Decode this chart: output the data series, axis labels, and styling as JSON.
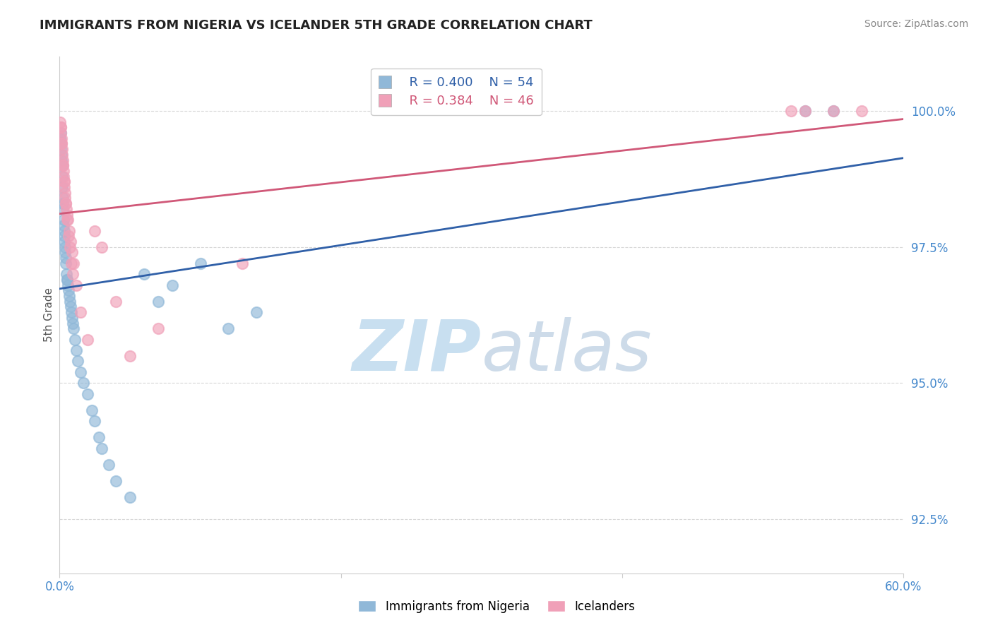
{
  "title": "IMMIGRANTS FROM NIGERIA VS ICELANDER 5TH GRADE CORRELATION CHART",
  "source_text": "Source: ZipAtlas.com",
  "ylabel": "5th Grade",
  "xlim": [
    0.0,
    60.0
  ],
  "ylim": [
    91.5,
    101.0
  ],
  "x_tick_vals": [
    0.0,
    20.0,
    40.0,
    60.0
  ],
  "x_tick_labels": [
    "0.0%",
    "",
    "",
    "60.0%"
  ],
  "y_tick_vals": [
    92.5,
    95.0,
    97.5,
    100.0
  ],
  "y_tick_labels": [
    "92.5%",
    "95.0%",
    "97.5%",
    "100.0%"
  ],
  "legend_R_blue": "R = 0.400",
  "legend_N_blue": "N = 54",
  "legend_R_pink": "R = 0.384",
  "legend_N_pink": "N = 46",
  "legend_label_blue": "Immigrants from Nigeria",
  "legend_label_pink": "Icelanders",
  "blue_dot_color": "#90b8d8",
  "pink_dot_color": "#f0a0b8",
  "blue_line_color": "#3060a8",
  "pink_line_color": "#d05878",
  "title_color": "#222222",
  "ylabel_color": "#555555",
  "tick_color": "#4488cc",
  "grid_color": "#cccccc",
  "watermark_zip_color": "#c8dff0",
  "watermark_atlas_color": "#b8cce0",
  "source_color": "#888888",
  "blue_x": [
    0.05,
    0.08,
    0.1,
    0.12,
    0.15,
    0.18,
    0.2,
    0.22,
    0.25,
    0.28,
    0.3,
    0.32,
    0.35,
    0.38,
    0.4,
    0.45,
    0.5,
    0.55,
    0.6,
    0.7,
    0.8,
    0.9,
    1.0,
    1.1,
    1.2,
    1.3,
    1.5,
    1.7,
    2.0,
    2.3,
    2.5,
    2.8,
    3.0,
    3.5,
    4.0,
    5.0,
    6.0,
    7.0,
    8.0,
    10.0,
    12.0,
    14.0,
    0.06,
    0.14,
    0.24,
    0.34,
    0.44,
    0.54,
    0.65,
    0.75,
    0.85,
    0.95,
    53.0,
    55.0
  ],
  "blue_y": [
    99.5,
    99.4,
    99.3,
    99.2,
    99.0,
    98.8,
    98.6,
    98.4,
    98.2,
    98.0,
    97.9,
    97.8,
    97.6,
    97.5,
    97.4,
    97.2,
    97.0,
    96.9,
    96.8,
    96.6,
    96.4,
    96.2,
    96.0,
    95.8,
    95.6,
    95.4,
    95.2,
    95.0,
    94.8,
    94.5,
    94.3,
    94.0,
    93.8,
    93.5,
    93.2,
    92.9,
    97.0,
    96.5,
    96.8,
    97.2,
    96.0,
    96.3,
    99.6,
    99.1,
    98.3,
    97.7,
    97.3,
    96.9,
    96.7,
    96.5,
    96.3,
    96.1,
    100.0,
    100.0
  ],
  "pink_x": [
    0.05,
    0.08,
    0.1,
    0.12,
    0.15,
    0.18,
    0.2,
    0.22,
    0.25,
    0.28,
    0.3,
    0.32,
    0.35,
    0.38,
    0.4,
    0.45,
    0.5,
    0.55,
    0.6,
    0.7,
    0.8,
    0.9,
    1.0,
    1.2,
    1.5,
    2.0,
    2.5,
    3.0,
    4.0,
    5.0,
    7.0,
    0.06,
    0.14,
    0.24,
    0.34,
    0.44,
    0.54,
    0.65,
    0.75,
    0.85,
    0.95,
    13.0,
    52.0,
    53.0,
    55.0,
    57.0
  ],
  "pink_y": [
    99.8,
    99.7,
    99.6,
    99.5,
    99.4,
    99.3,
    99.2,
    99.1,
    99.0,
    98.9,
    98.8,
    98.7,
    98.6,
    98.5,
    98.4,
    98.3,
    98.2,
    98.1,
    98.0,
    97.8,
    97.6,
    97.4,
    97.2,
    96.8,
    96.3,
    95.8,
    97.8,
    97.5,
    96.5,
    95.5,
    96.0,
    99.7,
    99.4,
    99.0,
    98.7,
    98.3,
    98.0,
    97.7,
    97.5,
    97.2,
    97.0,
    97.2,
    100.0,
    100.0,
    100.0,
    100.0
  ]
}
